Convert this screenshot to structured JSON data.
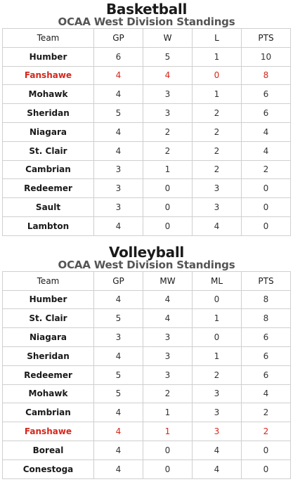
{
  "highlight_color": "#d7261c",
  "basketball": {
    "title": "Basketball",
    "subtitle": "OCAA West Division Standings",
    "headers": [
      "Team",
      "GP",
      "W",
      "L",
      "PTS"
    ],
    "rows": [
      [
        "Humber",
        "6",
        "5",
        "1",
        "10"
      ],
      [
        "Fanshawe",
        "4",
        "4",
        "0",
        "8"
      ],
      [
        "Mohawk",
        "4",
        "3",
        "1",
        "6"
      ],
      [
        "Sheridan",
        "5",
        "3",
        "2",
        "6"
      ],
      [
        "Niagara",
        "4",
        "2",
        "2",
        "4"
      ],
      [
        "St. Clair",
        "4",
        "2",
        "2",
        "4"
      ],
      [
        "Cambrian",
        "3",
        "1",
        "2",
        "2"
      ],
      [
        "Redeemer",
        "3",
        "0",
        "3",
        "0"
      ],
      [
        "Sault",
        "3",
        "0",
        "3",
        "0"
      ],
      [
        "Lambton",
        "4",
        "0",
        "4",
        "0"
      ]
    ],
    "highlight_row": 1
  },
  "volleyball": {
    "title": "Volleyball",
    "subtitle": "OCAA West Division Standings",
    "headers": [
      "Team",
      "GP",
      "MW",
      "ML",
      "PTS"
    ],
    "rows": [
      [
        "Humber",
        "4",
        "4",
        "0",
        "8"
      ],
      [
        "St. Clair",
        "5",
        "4",
        "1",
        "8"
      ],
      [
        "Niagara",
        "3",
        "3",
        "0",
        "6"
      ],
      [
        "Sheridan",
        "4",
        "3",
        "1",
        "6"
      ],
      [
        "Redeemer",
        "5",
        "3",
        "2",
        "6"
      ],
      [
        "Mohawk",
        "5",
        "2",
        "3",
        "4"
      ],
      [
        "Cambrian",
        "4",
        "1",
        "3",
        "2"
      ],
      [
        "Fanshawe",
        "4",
        "1",
        "3",
        "2"
      ],
      [
        "Boreal",
        "4",
        "0",
        "4",
        "0"
      ],
      [
        "Conestoga",
        "4",
        "0",
        "4",
        "0"
      ]
    ],
    "highlight_row": 7
  }
}
